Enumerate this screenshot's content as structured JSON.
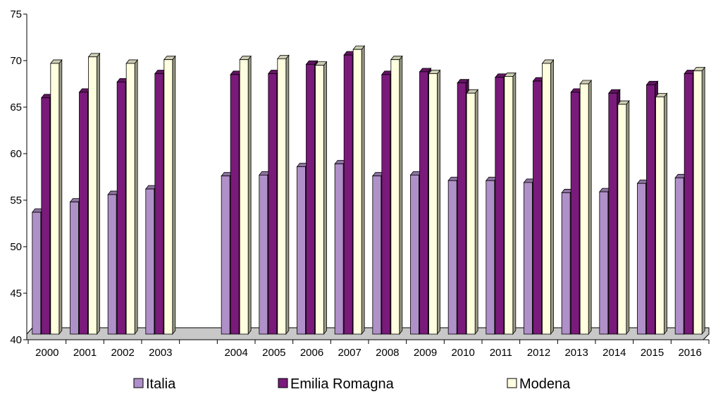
{
  "chart_data": {
    "type": "bar",
    "categories": [
      "2000",
      "2001",
      "2002",
      "2003",
      "",
      "2004",
      "2005",
      "2006",
      "2007",
      "2008",
      "2009",
      "2010",
      "2011",
      "2012",
      "2013",
      "2014",
      "2015",
      "2016"
    ],
    "series": [
      {
        "name": "Italia",
        "color": "#b090c8",
        "values": [
          53.7,
          54.8,
          55.6,
          56.2,
          null,
          57.6,
          57.7,
          58.6,
          58.9,
          57.6,
          57.7,
          57.1,
          57.1,
          56.9,
          55.8,
          55.9,
          56.8,
          57.4
        ]
      },
      {
        "name": "Emilia Romagna",
        "color": "#7a1a7a",
        "values": [
          66.0,
          66.6,
          67.7,
          68.6,
          null,
          68.5,
          68.6,
          69.6,
          70.6,
          68.5,
          68.8,
          67.6,
          68.2,
          67.8,
          66.6,
          66.5,
          67.4,
          68.6
        ]
      },
      {
        "name": "Modena",
        "color": "#ffffe0",
        "values": [
          69.7,
          70.4,
          69.7,
          70.1,
          null,
          70.1,
          70.2,
          69.5,
          71.2,
          70.1,
          68.6,
          66.5,
          68.3,
          69.7,
          67.5,
          65.3,
          66.1,
          68.9
        ]
      }
    ],
    "y_ticks": [
      "40",
      "45",
      "50",
      "55",
      "60",
      "65",
      "70",
      "75"
    ],
    "ylim": [
      40,
      75
    ],
    "title": "",
    "xlabel": "",
    "ylabel": "",
    "legend_position": "bottom",
    "grid": false
  }
}
